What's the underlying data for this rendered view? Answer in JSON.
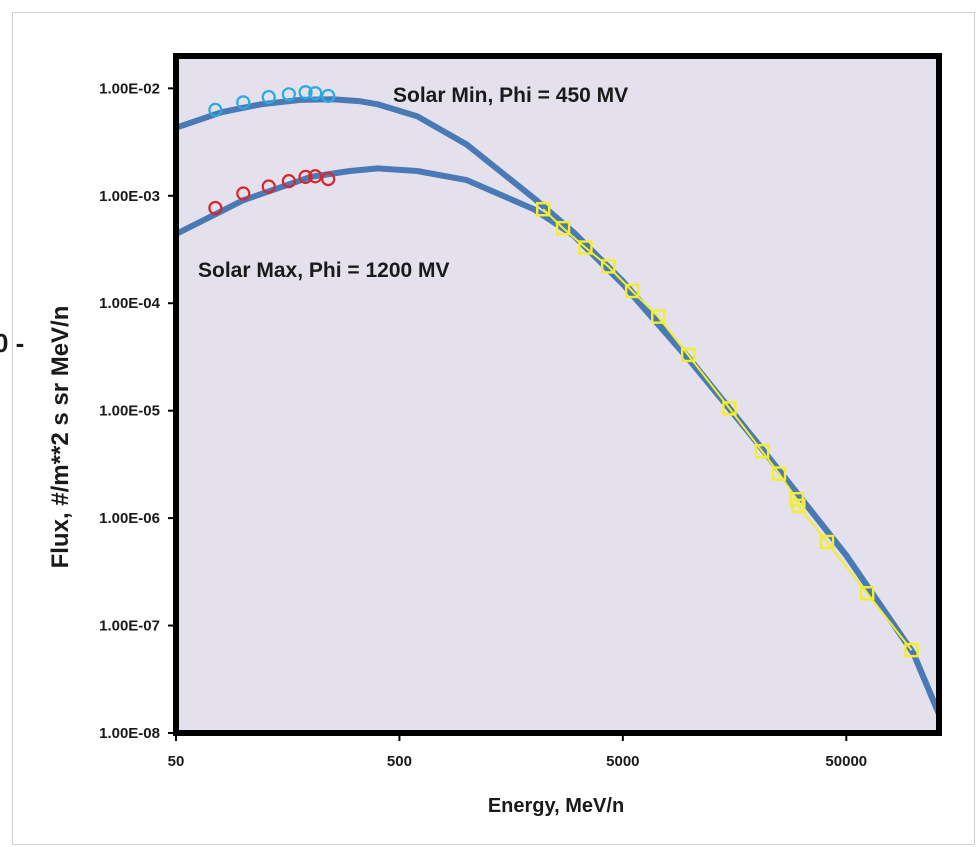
{
  "chart_data": {
    "type": "scatter",
    "title": "",
    "xlabel": "Energy, MeV/n",
    "ylabel": "Flux, #/m**2 s sr MeV/n",
    "x_scale": "log",
    "y_scale": "log",
    "xlim": [
      50,
      130000
    ],
    "ylim": [
      1e-08,
      0.02
    ],
    "x_ticks": [
      50,
      500,
      5000,
      50000
    ],
    "x_tick_labels": [
      "50",
      "500",
      "5000",
      "50000"
    ],
    "y_ticks": [
      1e-08,
      1e-07,
      1e-06,
      1e-05,
      0.0001,
      0.001,
      0.01
    ],
    "y_tick_labels": [
      "1.00E-08",
      "1.00E-07",
      "1.00E-06",
      "1.00E-05",
      "1.00E-04",
      "1.00E-03",
      "1.00E-02"
    ],
    "plot_background": "#e4e1ec",
    "grid": false,
    "legend": "none",
    "annotations": [
      "Solar Min, Phi = 450 MV",
      "Solar Max, Phi = 1200 MV"
    ],
    "left_margin_fragment": "0 -",
    "series": [
      {
        "kind": "line",
        "color": "#4a7ab5",
        "x": [
          50,
          80,
          120,
          180,
          250,
          330,
          400,
          600,
          1000,
          2000,
          3000,
          5000,
          10000,
          20000,
          50000,
          100000,
          130000
        ],
        "y": [
          0.0043,
          0.006,
          0.0071,
          0.0078,
          0.0079,
          0.0076,
          0.0071,
          0.0055,
          0.003,
          0.00095,
          0.00046,
          0.00016,
          3e-05,
          5e-06,
          4.5e-07,
          5.5e-08,
          1.5e-08
        ]
      },
      {
        "kind": "line",
        "color": "#4a7ab5",
        "x": [
          50,
          100,
          200,
          300,
          400,
          600,
          1000,
          2000,
          3000,
          5000,
          10000,
          20000,
          50000,
          100000,
          130000
        ],
        "y": [
          0.00044,
          0.00091,
          0.0015,
          0.0017,
          0.0018,
          0.0017,
          0.0014,
          0.00075,
          0.00043,
          0.00015,
          2.9e-05,
          5e-06,
          4.5e-07,
          5.5e-08,
          1.5e-08
        ]
      },
      {
        "kind": "markers",
        "marker": "circle",
        "color": "#29abe2",
        "x": [
          75,
          100,
          130,
          160,
          190,
          210,
          240
        ],
        "y": [
          0.0063,
          0.0074,
          0.0083,
          0.0088,
          0.0092,
          0.009,
          0.0085
        ]
      },
      {
        "kind": "markers",
        "marker": "circle",
        "color": "#d9262b",
        "x": [
          75,
          100,
          130,
          160,
          190,
          210,
          240
        ],
        "y": [
          0.00077,
          0.00105,
          0.00122,
          0.00137,
          0.0015,
          0.00152,
          0.00143
        ]
      },
      {
        "kind": "line+markers",
        "marker": "square",
        "color": "#f2ee2e",
        "x": [
          2200,
          2700,
          3400,
          4300,
          5500,
          7200,
          9800,
          15000,
          21000,
          25000,
          30000,
          30500,
          41000,
          62000,
          98000
        ],
        "y": [
          0.00075,
          0.0005,
          0.00033,
          0.00022,
          0.00013,
          7.5e-05,
          3.3e-05,
          1.05e-05,
          4.2e-06,
          2.6e-06,
          1.5e-06,
          1.3e-06,
          6e-07,
          2e-07,
          5.9e-08
        ]
      }
    ]
  }
}
